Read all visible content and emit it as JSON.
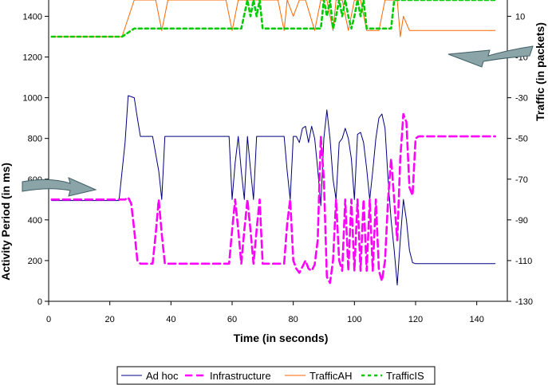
{
  "chart_data": {
    "type": "line",
    "xlabel": "Time (in seconds)",
    "ylabel": "Activity Period (in ms)",
    "y2label": "Traffic (in packets)",
    "xlim": [
      0,
      150
    ],
    "ylim": [
      0,
      1480
    ],
    "y2lim": [
      -130,
      18
    ],
    "x_ticks": [
      0,
      20,
      40,
      60,
      80,
      100,
      120,
      140
    ],
    "y_ticks": [
      0,
      200,
      400,
      600,
      800,
      1000,
      1200,
      1400
    ],
    "y2_ticks": [
      -130,
      -110,
      -90,
      -70,
      -50,
      -30,
      -10,
      10
    ],
    "grid": false,
    "legend_position": "bottom",
    "series": [
      {
        "name": "Ad hoc",
        "axis": "left",
        "color": "#000080",
        "dash": "solid",
        "x": [
          1,
          23,
          25,
          26,
          28,
          29,
          30,
          34,
          36,
          37,
          38,
          58,
          59,
          60,
          61,
          62,
          63,
          64,
          65,
          66,
          67,
          68,
          69,
          70,
          77,
          78,
          79,
          80,
          81,
          82,
          83,
          84,
          85,
          86,
          87,
          88,
          89,
          90,
          91,
          92,
          93,
          94,
          95,
          96,
          97,
          98,
          99,
          100,
          101,
          102,
          103,
          104,
          105,
          106,
          107,
          108,
          109,
          110,
          111,
          112,
          113,
          114,
          115,
          116,
          117,
          118,
          119,
          120,
          121,
          122,
          146
        ],
        "y": [
          495,
          495,
          780,
          1010,
          1000,
          900,
          810,
          810,
          640,
          500,
          810,
          810,
          810,
          500,
          680,
          810,
          640,
          500,
          810,
          650,
          500,
          810,
          810,
          810,
          810,
          640,
          500,
          810,
          810,
          780,
          850,
          860,
          780,
          860,
          800,
          650,
          470,
          800,
          940,
          800,
          600,
          500,
          780,
          800,
          850,
          800,
          700,
          500,
          820,
          830,
          780,
          650,
          500,
          640,
          800,
          900,
          920,
          850,
          600,
          400,
          250,
          80,
          300,
          500,
          400,
          250,
          190,
          185,
          185,
          185,
          185
        ]
      },
      {
        "name": "Infrastructure",
        "axis": "left",
        "color": "#ff00ff",
        "dash": "dashed",
        "x": [
          1,
          23,
          25,
          26,
          27,
          28,
          29,
          30,
          34,
          35,
          36,
          37,
          38,
          58,
          59,
          60,
          61,
          62,
          63,
          64,
          65,
          66,
          67,
          68,
          69,
          70,
          77,
          78,
          79,
          80,
          81,
          82,
          83,
          84,
          85,
          86,
          87,
          88,
          89,
          90,
          91,
          92,
          93,
          94,
          95,
          96,
          97,
          98,
          99,
          100,
          101,
          102,
          103,
          104,
          105,
          106,
          107,
          108,
          109,
          110,
          111,
          112,
          113,
          114,
          115,
          116,
          117,
          118,
          119,
          120,
          121,
          122,
          146
        ],
        "y": [
          500,
          500,
          500,
          510,
          480,
          350,
          200,
          185,
          185,
          330,
          500,
          330,
          185,
          185,
          185,
          350,
          500,
          350,
          185,
          350,
          500,
          350,
          185,
          350,
          500,
          185,
          185,
          380,
          500,
          200,
          160,
          140,
          170,
          200,
          160,
          150,
          180,
          300,
          810,
          600,
          120,
          90,
          200,
          500,
          200,
          150,
          500,
          150,
          500,
          150,
          500,
          150,
          500,
          150,
          500,
          150,
          500,
          150,
          100,
          200,
          500,
          700,
          500,
          300,
          700,
          920,
          880,
          560,
          520,
          800,
          810,
          810,
          810
        ]
      },
      {
        "name": "TrafficAH",
        "axis": "right",
        "color": "#ff6600",
        "dash": "solid",
        "x": [
          1,
          24,
          28,
          35,
          37,
          39,
          58,
          60,
          62,
          75,
          77,
          78,
          80,
          82,
          84,
          87,
          89,
          91,
          93,
          94,
          96,
          98,
          100,
          102,
          104,
          106,
          108,
          110,
          112,
          114,
          115,
          116,
          118,
          146
        ],
        "y": [
          0,
          0,
          18,
          18,
          3,
          18,
          18,
          3,
          18,
          18,
          3,
          18,
          10,
          18,
          18,
          3,
          18,
          18,
          3,
          18,
          18,
          3,
          18,
          18,
          3,
          3,
          3,
          18,
          18,
          18,
          0,
          10,
          3,
          3
        ]
      },
      {
        "name": "TrafficIS",
        "axis": "right",
        "color": "#00cc00",
        "dash": "dotted",
        "x": [
          1,
          24,
          26,
          28,
          30,
          63,
          65,
          66,
          67,
          68,
          69,
          70,
          89,
          90,
          91,
          92,
          93,
          94,
          95,
          96,
          97,
          98,
          99,
          100,
          101,
          102,
          103,
          104,
          105,
          106,
          112,
          113,
          114,
          115,
          116,
          146
        ],
        "y": [
          0,
          0,
          2,
          4,
          4,
          4,
          18,
          10,
          18,
          10,
          18,
          4,
          4,
          18,
          10,
          18,
          4,
          10,
          18,
          10,
          18,
          10,
          4,
          10,
          18,
          10,
          18,
          4,
          4,
          4,
          4,
          18,
          18,
          18,
          18,
          18
        ]
      }
    ]
  }
}
